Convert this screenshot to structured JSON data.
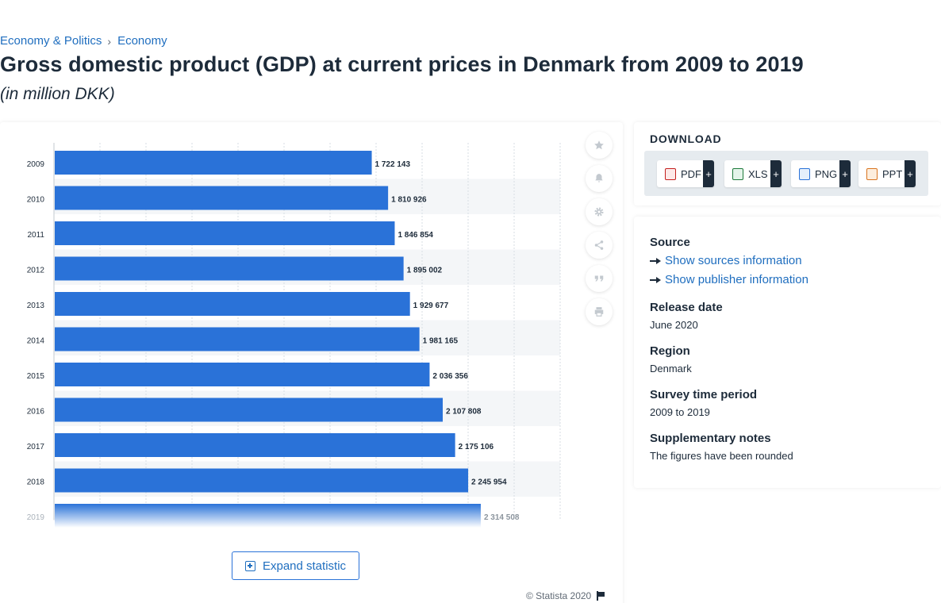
{
  "breadcrumb": {
    "items": [
      "Economy & Politics",
      "Economy"
    ],
    "separator": "›"
  },
  "title": "Gross domestic product (GDP) at current prices in Denmark from 2009 to 2019",
  "subtitle": "(in million DKK)",
  "chart_data": {
    "type": "bar",
    "orientation": "horizontal",
    "categories": [
      "2009",
      "2010",
      "2011",
      "2012",
      "2013",
      "2014",
      "2015",
      "2016",
      "2017",
      "2018",
      "2019"
    ],
    "values": [
      1722143,
      1810926,
      1846854,
      1895002,
      1929677,
      1981165,
      2036356,
      2107808,
      2175106,
      2245954,
      2314508
    ],
    "value_labels": [
      "1 722 143",
      "1 810 926",
      "1 846 854",
      "1 895 002",
      "1 929 677",
      "1 981 165",
      "2 036 356",
      "2 107 808",
      "2 175 106",
      "2 245 954",
      "2 314 508"
    ],
    "xlim": [
      0,
      2750000
    ],
    "bar_color": "#2a72d8",
    "grid": true
  },
  "chart_tools": [
    "star-icon",
    "bell-icon",
    "gear-icon",
    "share-icon",
    "quote-icon",
    "print-icon"
  ],
  "expand_label": "Expand statistic",
  "copyright": "© Statista 2020",
  "download": {
    "title": "DOWNLOAD",
    "formats": [
      {
        "label": "PDF",
        "plus": "+"
      },
      {
        "label": "XLS",
        "plus": "+"
      },
      {
        "label": "PNG",
        "plus": "+"
      },
      {
        "label": "PPT",
        "plus": "+"
      }
    ]
  },
  "info": {
    "source_head": "Source",
    "show_sources": "Show sources information",
    "show_publisher": "Show publisher information",
    "release_head": "Release date",
    "release_val": "June 2020",
    "region_head": "Region",
    "region_val": "Denmark",
    "survey_head": "Survey time period",
    "survey_val": "2009 to 2019",
    "notes_head": "Supplementary notes",
    "notes_val": "The figures have been rounded"
  }
}
